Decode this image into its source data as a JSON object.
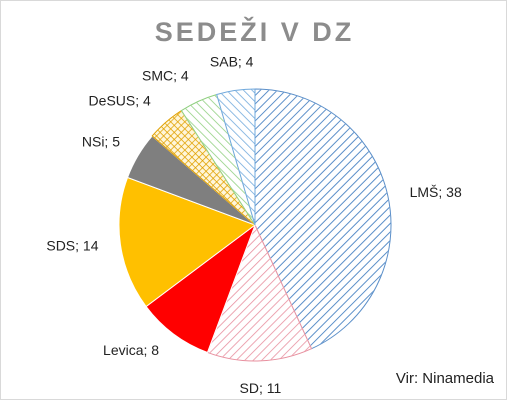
{
  "chart_data": {
    "type": "pie",
    "title": "SEDEŽI V DZ",
    "slices": [
      {
        "name": "LMŠ",
        "value": 38,
        "label": "LMŠ; 38",
        "color": "#5b8fc9",
        "fill": "diag-down"
      },
      {
        "name": "SD",
        "value": 11,
        "label": "SD; 11",
        "color": "#e8909f",
        "fill": "diag-down"
      },
      {
        "name": "Levica",
        "value": 8,
        "label": "Levica; 8",
        "color": "#ff0000",
        "fill": "solid"
      },
      {
        "name": "SDS",
        "value": 14,
        "label": "SDS; 14",
        "color": "#ffc000",
        "fill": "solid"
      },
      {
        "name": "NSi",
        "value": 5,
        "label": "NSi; 5",
        "color": "#7f7f7f",
        "fill": "solid"
      },
      {
        "name": "DeSUS",
        "value": 4,
        "label": "DeSUS; 4",
        "color": "#e0a000",
        "fill": "grid"
      },
      {
        "name": "SMC",
        "value": 4,
        "label": "SMC; 4",
        "color": "#8fcf7f",
        "fill": "diag-up"
      },
      {
        "name": "SAB",
        "value": 4,
        "label": "SAB; 4",
        "color": "#6fa8dc",
        "fill": "diag-up"
      }
    ],
    "start": "top",
    "direction": "clockwise",
    "legend": "none",
    "data_labels": "outside"
  },
  "source": "Vir: Ninamedia"
}
